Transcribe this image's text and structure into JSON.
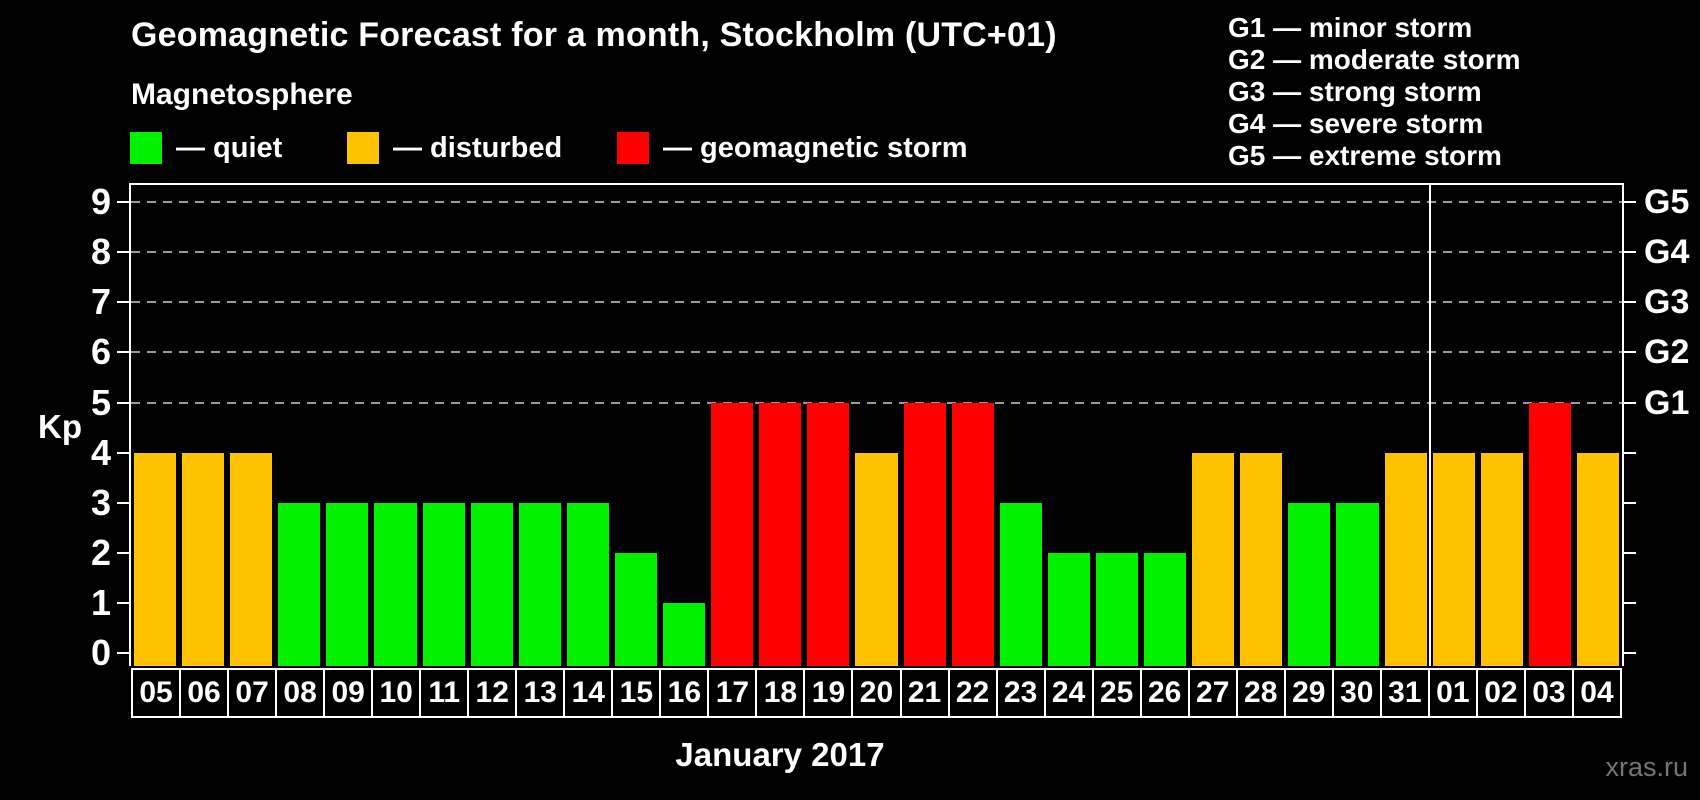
{
  "header": {
    "title": "Geomagnetic Forecast for a month, Stockholm (UTC+01)",
    "subtitle": "Magnetosphere"
  },
  "legend": {
    "items": [
      {
        "name": "quiet",
        "label": "— quiet",
        "color": "#00f000"
      },
      {
        "name": "disturbed",
        "label": "— disturbed",
        "color": "#ffc200"
      },
      {
        "name": "geomagnetic-storm",
        "label": "— geomagnetic storm",
        "color": "#ff0000"
      }
    ]
  },
  "storm_scale_legend": [
    "G1 — minor storm",
    "G2 — moderate storm",
    "G3 — strong storm",
    "G4 — severe storm",
    "G5 — extreme storm"
  ],
  "watermark": "xras.ru",
  "colors": {
    "background": "#000000",
    "text": "#ffffff",
    "grid": "#9a9a9a",
    "axis": "#ffffff",
    "watermark": "#757575"
  },
  "chart_data": {
    "type": "bar",
    "title": "Geomagnetic Forecast for a month, Stockholm (UTC+01)",
    "xlabel": "January 2017",
    "ylabel": "Kp",
    "ylim": [
      0,
      9.4
    ],
    "yticks": [
      0,
      1,
      2,
      3,
      4,
      5,
      6,
      7,
      8,
      9
    ],
    "gridlines": [
      5,
      6,
      7,
      8,
      9
    ],
    "grid_style": "dashed",
    "legend_position": "top",
    "right_axis_labels": [
      {
        "value": 5,
        "label": "G1"
      },
      {
        "value": 6,
        "label": "G2"
      },
      {
        "value": 7,
        "label": "G3"
      },
      {
        "value": 8,
        "label": "G4"
      },
      {
        "value": 9,
        "label": "G5"
      }
    ],
    "categories": [
      "05",
      "06",
      "07",
      "08",
      "09",
      "10",
      "11",
      "12",
      "13",
      "14",
      "15",
      "16",
      "17",
      "18",
      "19",
      "20",
      "21",
      "22",
      "23",
      "24",
      "25",
      "26",
      "27",
      "28",
      "29",
      "30",
      "31",
      "01",
      "02",
      "03",
      "04"
    ],
    "values": [
      4,
      4,
      4,
      3,
      3,
      3,
      3,
      3,
      3,
      3,
      2,
      1,
      5,
      5,
      5,
      4,
      5,
      5,
      3,
      2,
      2,
      2,
      4,
      4,
      3,
      3,
      4,
      4,
      4,
      5,
      4
    ],
    "states": [
      "disturbed",
      "disturbed",
      "disturbed",
      "quiet",
      "quiet",
      "quiet",
      "quiet",
      "quiet",
      "quiet",
      "quiet",
      "quiet",
      "quiet",
      "storm",
      "storm",
      "storm",
      "disturbed",
      "storm",
      "storm",
      "quiet",
      "quiet",
      "quiet",
      "quiet",
      "disturbed",
      "disturbed",
      "quiet",
      "quiet",
      "disturbed",
      "disturbed",
      "disturbed",
      "storm",
      "disturbed"
    ],
    "state_colors": {
      "quiet": "#00f000",
      "disturbed": "#ffc200",
      "storm": "#ff0000"
    },
    "month_separator_after_index": 26
  }
}
